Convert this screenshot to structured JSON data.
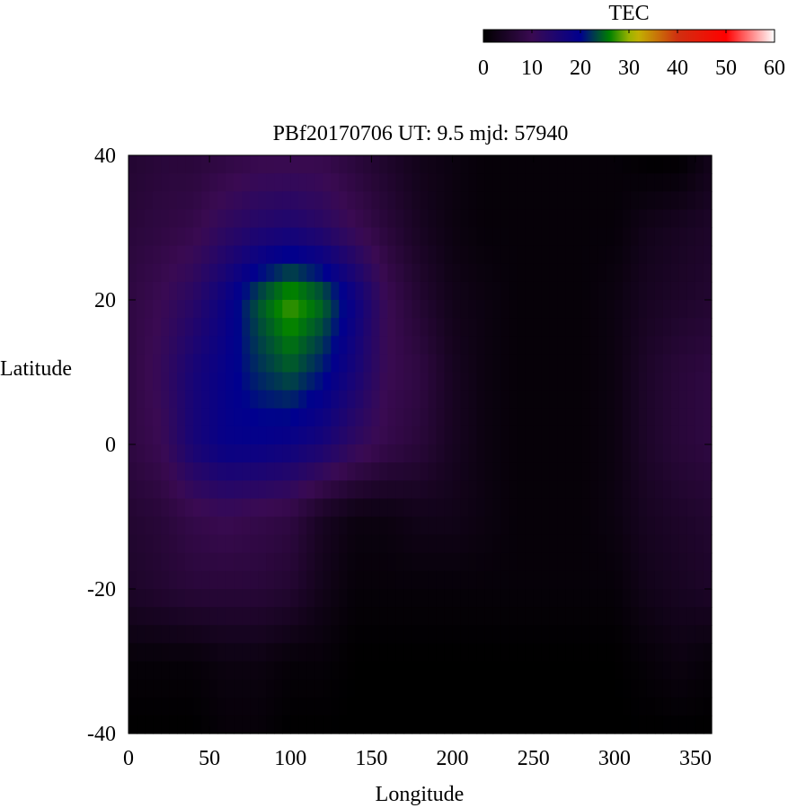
{
  "chart_data": {
    "type": "heatmap",
    "title": "PBf20170706  UT: 9.5  mjd: 57940",
    "xlabel": "Longitude",
    "ylabel": "Latitude",
    "xlim": [
      0,
      360
    ],
    "ylim": [
      -40,
      40
    ],
    "x_ticks": [
      "0",
      "50",
      "100",
      "150",
      "200",
      "250",
      "300",
      "350"
    ],
    "y_ticks": [
      "40",
      "20",
      "0",
      "-20",
      "-40"
    ],
    "colorbar": {
      "label": "TEC",
      "range": [
        0,
        60
      ],
      "ticks": [
        "0",
        "10",
        "20",
        "30",
        "40",
        "50",
        "60"
      ],
      "colormap_stops": [
        {
          "v": 0,
          "c": "#000000"
        },
        {
          "v": 10,
          "c": "#3a0a52"
        },
        {
          "v": 20,
          "c": "#00008e"
        },
        {
          "v": 26,
          "c": "#008000"
        },
        {
          "v": 31,
          "c": "#c0c000"
        },
        {
          "v": 40,
          "c": "#d03010"
        },
        {
          "v": 50,
          "c": "#ff0000"
        },
        {
          "v": 60,
          "c": "#ffffff"
        }
      ]
    },
    "grid_lon": [
      0,
      20,
      40,
      60,
      80,
      100,
      120,
      140,
      160,
      180,
      200,
      220,
      240,
      260,
      280,
      300,
      320,
      340,
      360
    ],
    "grid_lat": [
      40,
      30,
      20,
      10,
      0,
      -10,
      -20,
      -30,
      -40
    ],
    "values": [
      [
        6,
        7,
        7,
        8,
        9,
        9,
        9,
        7,
        5,
        3,
        2,
        1,
        1,
        1,
        1,
        1,
        0,
        0,
        3
      ],
      [
        7,
        8,
        9,
        12,
        14,
        15,
        13,
        10,
        7,
        4,
        2,
        1,
        1,
        1,
        1,
        1,
        3,
        4,
        5
      ],
      [
        8,
        10,
        13,
        18,
        24,
        28,
        25,
        18,
        10,
        6,
        3,
        2,
        1,
        1,
        1,
        2,
        4,
        5,
        6
      ],
      [
        8,
        11,
        16,
        19,
        22,
        24,
        21,
        16,
        10,
        8,
        4,
        2,
        1,
        1,
        1,
        2,
        5,
        7,
        8
      ],
      [
        8,
        10,
        16,
        19,
        19,
        18,
        16,
        12,
        9,
        7,
        4,
        2,
        1,
        1,
        1,
        2,
        5,
        7,
        8
      ],
      [
        6,
        7,
        9,
        10,
        9,
        8,
        4,
        2,
        2,
        3,
        3,
        2,
        1,
        1,
        1,
        2,
        4,
        5,
        6
      ],
      [
        5,
        6,
        7,
        7,
        7,
        6,
        3,
        1,
        1,
        1,
        1,
        1,
        1,
        1,
        1,
        1,
        3,
        4,
        5
      ],
      [
        1,
        1,
        1,
        2,
        2,
        1,
        1,
        0,
        0,
        0,
        0,
        0,
        0,
        0,
        0,
        0,
        1,
        2,
        1
      ],
      [
        0,
        0,
        0,
        1,
        1,
        0,
        0,
        0,
        0,
        0,
        0,
        0,
        0,
        0,
        0,
        0,
        0,
        0,
        0
      ]
    ]
  }
}
